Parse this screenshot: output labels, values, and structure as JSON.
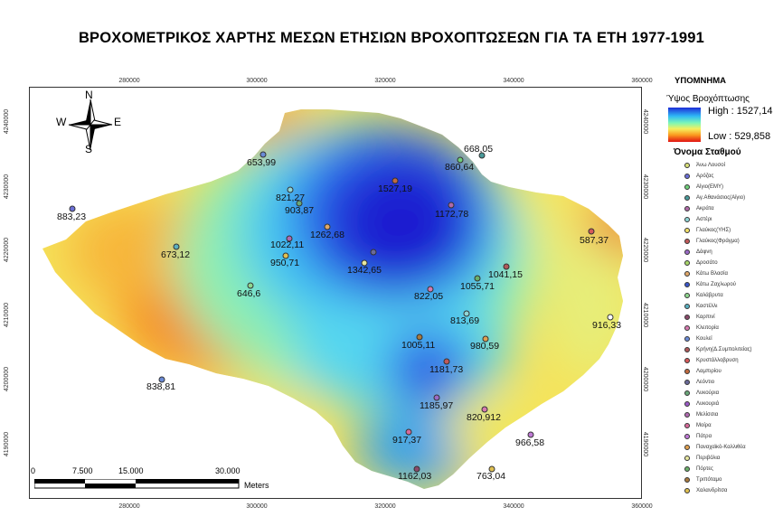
{
  "title": "ΒΡΟΧΟΜΕΤΡΙΚΟΣ ΧΑΡΤΗΣ ΜΕΣΩΝ ΕΤΗΣΙΩΝ ΒΡΟΧΟΠΤΩΣΕΩΝ ΓΙΑ ΤΑ ΕΤΗ 1977-1991",
  "axes": {
    "x_ticks": [
      "280000",
      "300000",
      "320000",
      "340000",
      "360000"
    ],
    "y_ticks": [
      "4240000",
      "4230000",
      "4220000",
      "4210000",
      "4200000",
      "4190000"
    ]
  },
  "north_arrow": {
    "n": "N",
    "s": "S",
    "e": "E",
    "w": "W"
  },
  "scalebar": {
    "labels": [
      "0",
      "7.500",
      "15.000",
      "30.000"
    ],
    "unit": "Meters"
  },
  "legend": {
    "title": "ΥΠΟΜΝΗΜΑ",
    "raster_title": "Ύψος Βροχόπτωσης",
    "high_label": "High : 1527,14",
    "low_label": "Low : 529,858",
    "stations_title": "Όνομα Σταθμού",
    "stations": [
      {
        "name": "Άνω Λουσοί",
        "color": "#d8e07a"
      },
      {
        "name": "Αρόζας",
        "color": "#6b6fd6"
      },
      {
        "name": "Αίγιο(ΕΜΥ)",
        "color": "#6fcf7a"
      },
      {
        "name": "Αγ.Αθανάσιος(Αίγιο)",
        "color": "#4a9a9a"
      },
      {
        "name": "Ακράτα",
        "color": "#b06aa8"
      },
      {
        "name": "Αστέρι",
        "color": "#8fd6d6"
      },
      {
        "name": "Γλαύκος(ΥΗΣ)",
        "color": "#f2e06a"
      },
      {
        "name": "Γλαύκος(Φράγμα)",
        "color": "#c05a5a"
      },
      {
        "name": "Δάφνη",
        "color": "#9a6ac6"
      },
      {
        "name": "Δροσάτο",
        "color": "#a8d66a"
      },
      {
        "name": "Κάτω Βλασία",
        "color": "#e0a86a"
      },
      {
        "name": "Κάτω Ζαχλωρού",
        "color": "#3a56c8"
      },
      {
        "name": "Καλάβρυτα",
        "color": "#8fd68f"
      },
      {
        "name": "Καστέλλι",
        "color": "#5ab0c0"
      },
      {
        "name": "Καρπινί",
        "color": "#8a4a6a"
      },
      {
        "name": "Κλειτορία",
        "color": "#d67ab0"
      },
      {
        "name": "Κουλεϊ",
        "color": "#6a8ad6"
      },
      {
        "name": "Κρήνη(Δ.Συμπολιτείας)",
        "color": "#b05a5a"
      },
      {
        "name": "Κρυστάλλοβρυση",
        "color": "#d65a5a"
      },
      {
        "name": "Λαμπιρίου",
        "color": "#c06a40"
      },
      {
        "name": "Λεόντιο",
        "color": "#6a6a9a"
      },
      {
        "name": "Λυκούρια",
        "color": "#6aa87a"
      },
      {
        "name": "Λυκουριά",
        "color": "#9a5ac6"
      },
      {
        "name": "Μελίσσια",
        "color": "#b06ab0"
      },
      {
        "name": "Μοίρα",
        "color": "#d66a9a"
      },
      {
        "name": "Πάτρα",
        "color": "#c07ad6"
      },
      {
        "name": "Παναχαϊκό-Καλλιθέα",
        "color": "#e0a050"
      },
      {
        "name": "Περιβόλια",
        "color": "#e8e8a0"
      },
      {
        "name": "Πόρτες",
        "color": "#6ab06a"
      },
      {
        "name": "Τριπόταμο",
        "color": "#a87a40"
      },
      {
        "name": "Χαλανδρίτσα",
        "color": "#e0c050"
      }
    ]
  },
  "station_labels": [
    {
      "text": "668,05"
    },
    {
      "text": "653,99"
    },
    {
      "text": "860,64"
    },
    {
      "text": "821,27"
    },
    {
      "text": "1527,19"
    },
    {
      "text": "903,87"
    },
    {
      "text": "1172,78"
    },
    {
      "text": "883,23"
    },
    {
      "text": "1262,68"
    },
    {
      "text": "587,37"
    },
    {
      "text": "1022,11"
    },
    {
      "text": "673,12"
    },
    {
      "text": "950,71"
    },
    {
      "text": "1342,65"
    },
    {
      "text": "1041,15"
    },
    {
      "text": "1055,71"
    },
    {
      "text": "646,6"
    },
    {
      "text": "822,05"
    },
    {
      "text": "813,69"
    },
    {
      "text": "916,33"
    },
    {
      "text": "1005,11"
    },
    {
      "text": "980,59"
    },
    {
      "text": "1181,73"
    },
    {
      "text": "838,81"
    },
    {
      "text": "1185,97"
    },
    {
      "text": "820,912"
    },
    {
      "text": "917,37"
    },
    {
      "text": "966,58"
    },
    {
      "text": "1162,03"
    },
    {
      "text": "763,04"
    }
  ]
}
